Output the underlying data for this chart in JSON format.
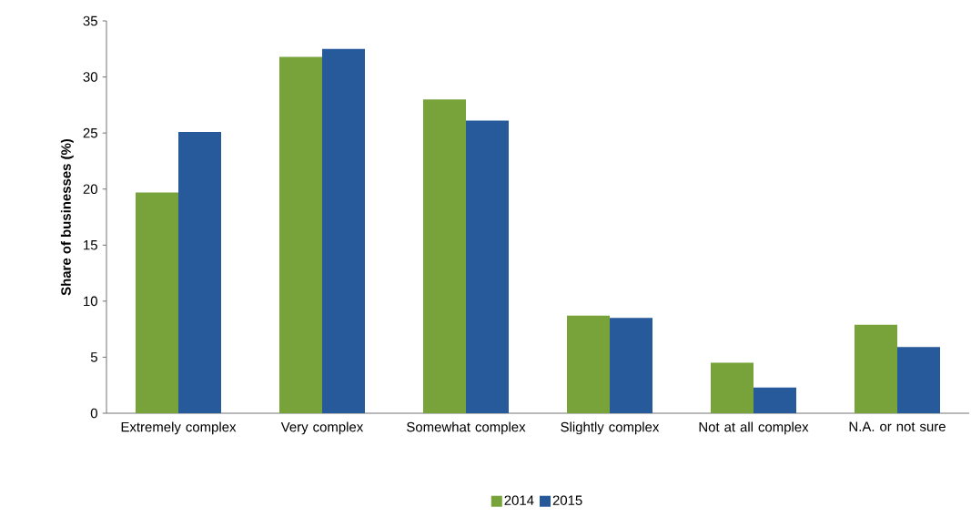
{
  "chart_data": {
    "type": "bar",
    "ylabel": "Share of businesses (%)",
    "categories": [
      "Extremely complex",
      "Very complex",
      "Somewhat complex",
      "Slightly complex",
      "Not at all complex",
      "N.A. or not sure"
    ],
    "series": [
      {
        "name": "2014",
        "color": "#77a33a",
        "values": [
          19.7,
          31.8,
          28.0,
          8.7,
          4.5,
          7.9
        ]
      },
      {
        "name": "2015",
        "color": "#265a9a",
        "values": [
          25.1,
          32.5,
          26.1,
          8.5,
          2.3,
          5.9
        ]
      }
    ],
    "ylim": [
      0,
      35
    ],
    "yticks": [
      0,
      5,
      10,
      15,
      20,
      25,
      30,
      35
    ],
    "grid": false,
    "legend": "bottom"
  }
}
